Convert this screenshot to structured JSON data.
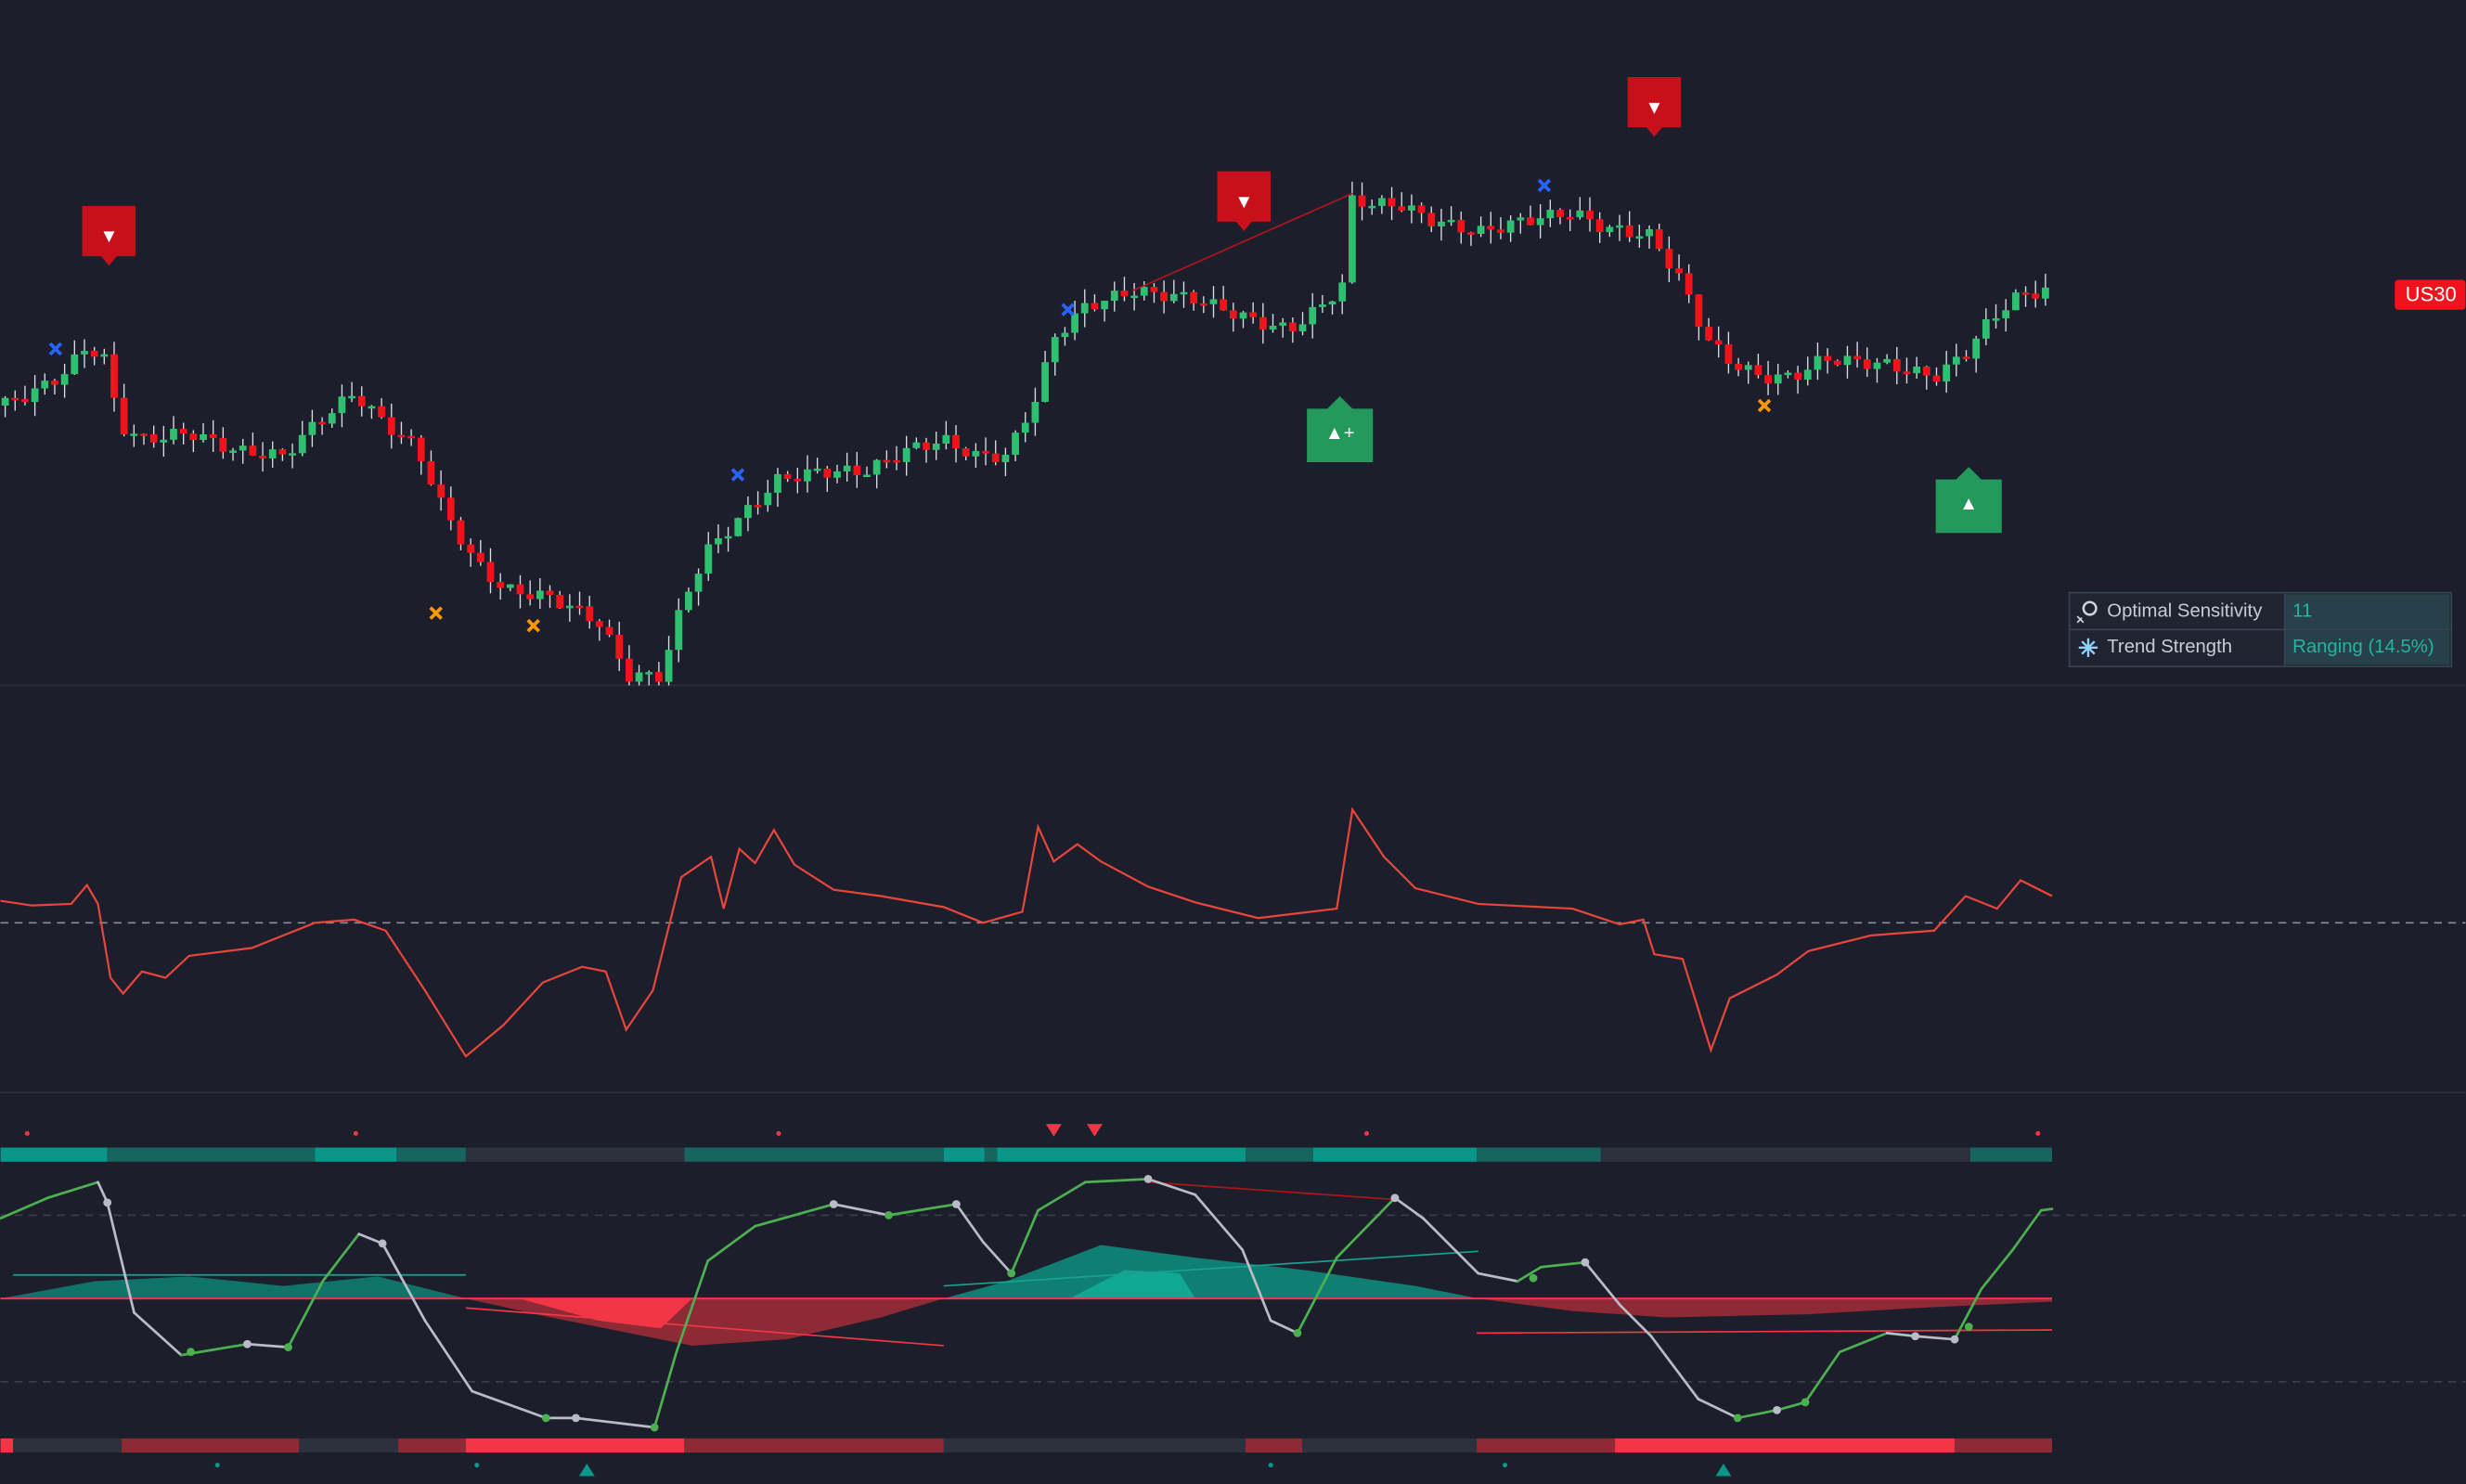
{
  "price_label": "US30",
  "signals": [
    {
      "label": "▼"
    },
    {
      "label": "▼"
    },
    {
      "label": "▼"
    },
    {
      "label": "▲+"
    },
    {
      "label": "▲"
    }
  ],
  "info_table": {
    "rows": [
      [
        "Optimal Sensitivity",
        "11"
      ],
      [
        "Trend Strength",
        "Ranging (14.5%)"
      ]
    ]
  }
}
